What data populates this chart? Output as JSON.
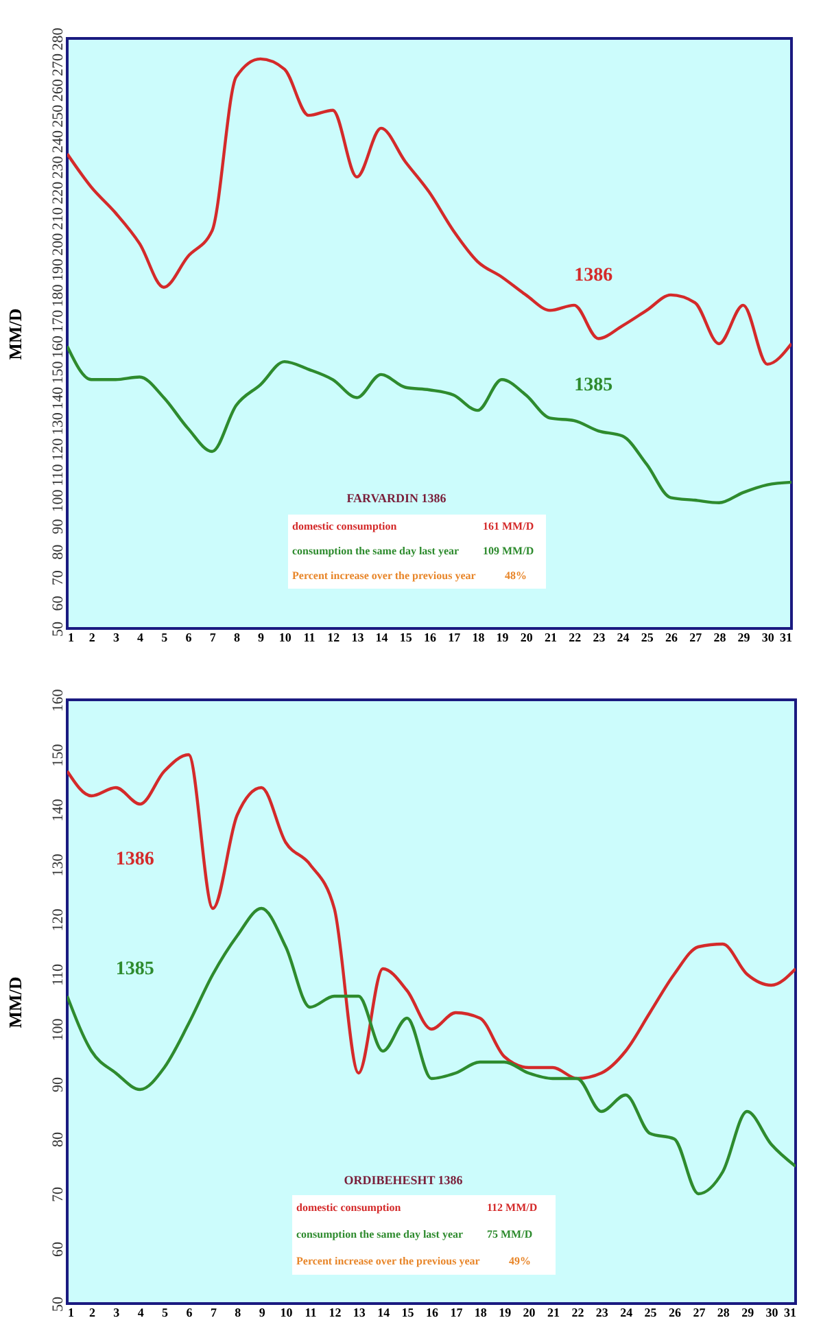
{
  "chart_data": [
    {
      "type": "line",
      "ylabel": "MM/D",
      "x": [
        1,
        2,
        3,
        4,
        5,
        6,
        7,
        8,
        9,
        10,
        11,
        12,
        13,
        14,
        15,
        16,
        17,
        18,
        19,
        20,
        21,
        22,
        23,
        24,
        25,
        26,
        27,
        28,
        29,
        30,
        31
      ],
      "xlim": [
        1,
        31
      ],
      "xticks": [
        1,
        2,
        3,
        4,
        5,
        6,
        7,
        8,
        9,
        10,
        11,
        12,
        13,
        14,
        15,
        16,
        17,
        18,
        19,
        20,
        21,
        22,
        23,
        24,
        25,
        26,
        27,
        28,
        29,
        30,
        31
      ],
      "ylim": [
        50,
        280
      ],
      "yticks": [
        50,
        60,
        70,
        80,
        90,
        100,
        110,
        120,
        130,
        140,
        150,
        160,
        170,
        180,
        190,
        200,
        210,
        220,
        230,
        240,
        250,
        260,
        270,
        280
      ],
      "grid": false,
      "legend": false,
      "marker": "none",
      "line_style": "solid",
      "series": [
        {
          "name": "1386",
          "color": "#d42a2a",
          "values": [
            235,
            222,
            212,
            200,
            183,
            195,
            205,
            265,
            272,
            268,
            250,
            252,
            226,
            245,
            232,
            220,
            205,
            193,
            187,
            180,
            174,
            176,
            163,
            168,
            174,
            180,
            177,
            161,
            176,
            153,
            161
          ]
        },
        {
          "name": "1385",
          "color": "#2e8b2e",
          "values": [
            160,
            147,
            147,
            148,
            140,
            128,
            119,
            137,
            145,
            154,
            151,
            147,
            140,
            149,
            144,
            143,
            141,
            135,
            147,
            141,
            132,
            131,
            127,
            125,
            114,
            101,
            100,
            99,
            103,
            106,
            107
          ]
        }
      ],
      "annotations": [
        "FARVARDIN 1386",
        "domestic consumption",
        "161  MM/D",
        "consumption the same day last year",
        "109  MM/D",
        "Percent increase over the previous year",
        "48%"
      ]
    },
    {
      "type": "line",
      "ylabel": "MM/D",
      "x": [
        1,
        2,
        3,
        4,
        5,
        6,
        7,
        8,
        9,
        10,
        11,
        12,
        13,
        14,
        15,
        16,
        17,
        18,
        19,
        20,
        21,
        22,
        23,
        24,
        25,
        26,
        27,
        28,
        29,
        30,
        31
      ],
      "xlim": [
        1,
        31
      ],
      "xticks": [
        1,
        2,
        3,
        4,
        5,
        6,
        7,
        8,
        9,
        10,
        11,
        12,
        13,
        14,
        15,
        16,
        17,
        18,
        19,
        20,
        21,
        22,
        23,
        24,
        25,
        26,
        27,
        28,
        29,
        30,
        31
      ],
      "ylim": [
        50,
        160
      ],
      "yticks": [
        50,
        60,
        70,
        80,
        90,
        100,
        110,
        120,
        130,
        140,
        150,
        160
      ],
      "grid": false,
      "legend": false,
      "marker": "none",
      "line_style": "solid",
      "series": [
        {
          "name": "1386",
          "color": "#d42a2a",
          "values": [
            147,
            142.5,
            144,
            141,
            147,
            150,
            122,
            139,
            144,
            134,
            130,
            122,
            92,
            111,
            107,
            100,
            103,
            102,
            95,
            93,
            93,
            91,
            92,
            96,
            103,
            110,
            115,
            115.5,
            110,
            108,
            111
          ]
        },
        {
          "name": "1385",
          "color": "#2e8b2e",
          "values": [
            106,
            96,
            92,
            89,
            93,
            101,
            110,
            117,
            122,
            115,
            104,
            106,
            106,
            96,
            102,
            91,
            92,
            94,
            94,
            92,
            91,
            91,
            85,
            88,
            81,
            80,
            70,
            74,
            85,
            79,
            75
          ]
        }
      ],
      "annotations": [
        "ORDIBEHESHT  1386",
        "domestic consumption",
        "112  MM/D",
        "consumption the same day last year",
        "75  MM/D",
        "Percent increase over the previous year",
        "49%"
      ]
    }
  ]
}
